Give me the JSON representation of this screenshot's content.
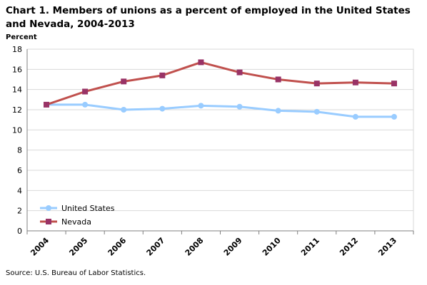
{
  "chart_data": {
    "type": "line",
    "title": "Chart 1. Members of unions as a percent of employed in the United States and Nevada, 2004-2013",
    "ylabel": "Percent",
    "xlabel": "",
    "x": [
      "2004",
      "2005",
      "2006",
      "2007",
      "2008",
      "2009",
      "2010",
      "2011",
      "2012",
      "2013"
    ],
    "ylim": [
      0,
      18
    ],
    "yticks": [
      0,
      2,
      4,
      6,
      8,
      10,
      12,
      14,
      16,
      18
    ],
    "grid": true,
    "legend_position": "bottom-left",
    "series": [
      {
        "name": "United States",
        "color": "#99ccff",
        "marker": "circle",
        "values": [
          12.5,
          12.5,
          12.0,
          12.1,
          12.4,
          12.3,
          11.9,
          11.8,
          11.3,
          11.3
        ]
      },
      {
        "name": "Nevada",
        "color": "#c0504d",
        "marker_color": "#993366",
        "marker": "square",
        "values": [
          12.5,
          13.8,
          14.8,
          15.4,
          16.7,
          15.7,
          15.0,
          14.6,
          14.7,
          14.6
        ]
      }
    ],
    "source": "Source: U.S. Bureau of Labor Statistics."
  }
}
